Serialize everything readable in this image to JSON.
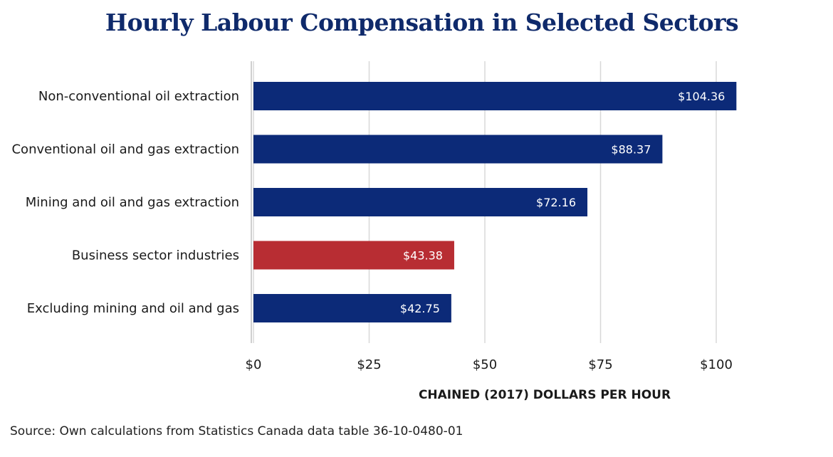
{
  "chart_data": {
    "type": "bar",
    "orientation": "horizontal",
    "title": "Hourly Labour Compensation in Selected Sectors",
    "xlabel": "CHAINED (2017) DOLLARS PER HOUR",
    "ylabel": "",
    "xlim": [
      0,
      100
    ],
    "x_ticks": [
      "$0",
      "$25",
      "$50",
      "$75",
      "$100"
    ],
    "x_tick_values": [
      0,
      25,
      50,
      75,
      100
    ],
    "grid": true,
    "categories": [
      "Non-conventional oil extraction",
      "Conventional oil and gas extraction",
      "Mining and oil and gas extraction",
      "Business sector industries",
      "Excluding mining and oil and gas"
    ],
    "values": [
      104.36,
      88.37,
      72.16,
      43.38,
      42.75
    ],
    "data_labels": [
      "$104.36",
      "$88.37",
      "$72.16",
      "$43.38",
      "$42.75"
    ],
    "bar_colors": [
      "#0c2a78",
      "#0c2a78",
      "#0c2a78",
      "#b82d33",
      "#0c2a78"
    ]
  },
  "source": "Source: Own calculations from Statistics Canada data table 36-10-0480-01",
  "colors": {
    "title": "#0f2a6b",
    "primary_bar": "#0c2a78",
    "highlight_bar": "#b82d33",
    "grid": "#d8d8d8",
    "text": "#1a1a1a"
  }
}
